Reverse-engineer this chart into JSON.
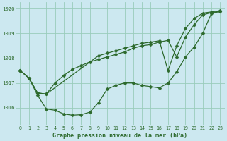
{
  "bg_color": "#cce8f0",
  "grid_color": "#99ccbb",
  "line_color": "#2d6a2d",
  "title": "Graphe pression niveau de la mer (hPa)",
  "xlim": [
    -0.5,
    23.5
  ],
  "ylim": [
    1015.3,
    1020.25
  ],
  "yticks": [
    1016,
    1017,
    1018,
    1019,
    1020
  ],
  "xticks": [
    0,
    1,
    2,
    3,
    4,
    5,
    6,
    7,
    8,
    9,
    10,
    11,
    12,
    13,
    14,
    15,
    16,
    17,
    18,
    19,
    20,
    21,
    22,
    23
  ],
  "line1_x": [
    0,
    1,
    2,
    3,
    4,
    5,
    6,
    7,
    8,
    9,
    10,
    11,
    12,
    13,
    14,
    15,
    16,
    17,
    18,
    19,
    20,
    21,
    22,
    23
  ],
  "line1_y": [
    1017.5,
    1017.2,
    1016.5,
    1015.95,
    1015.9,
    1015.75,
    1015.7,
    1015.72,
    1015.82,
    1016.2,
    1016.75,
    1016.9,
    1017.0,
    1017.0,
    1016.9,
    1016.85,
    1016.8,
    1017.0,
    1017.45,
    1018.05,
    1018.45,
    1019.0,
    1019.82,
    1019.88
  ],
  "line2_x": [
    0,
    1,
    2,
    3,
    4,
    5,
    6,
    7,
    8,
    9,
    10,
    11,
    12,
    13,
    14,
    15,
    16,
    17,
    18,
    19,
    20,
    21,
    22,
    23
  ],
  "line2_y": [
    1017.5,
    1017.2,
    1016.6,
    1016.55,
    1017.0,
    1017.3,
    1017.55,
    1017.7,
    1017.85,
    1017.95,
    1018.05,
    1018.15,
    1018.25,
    1018.4,
    1018.5,
    1018.55,
    1018.65,
    1018.72,
    1018.05,
    1018.85,
    1019.35,
    1019.75,
    1019.84,
    1019.9
  ],
  "line3_x": [
    0,
    1,
    2,
    3,
    9,
    10,
    11,
    12,
    13,
    14,
    15,
    16,
    17,
    18,
    19,
    20,
    21,
    22,
    23
  ],
  "line3_y": [
    1017.5,
    1017.2,
    1016.6,
    1016.55,
    1018.1,
    1018.2,
    1018.3,
    1018.4,
    1018.5,
    1018.6,
    1018.65,
    1018.7,
    1017.5,
    1018.5,
    1019.2,
    1019.6,
    1019.82,
    1019.87,
    1019.92
  ]
}
